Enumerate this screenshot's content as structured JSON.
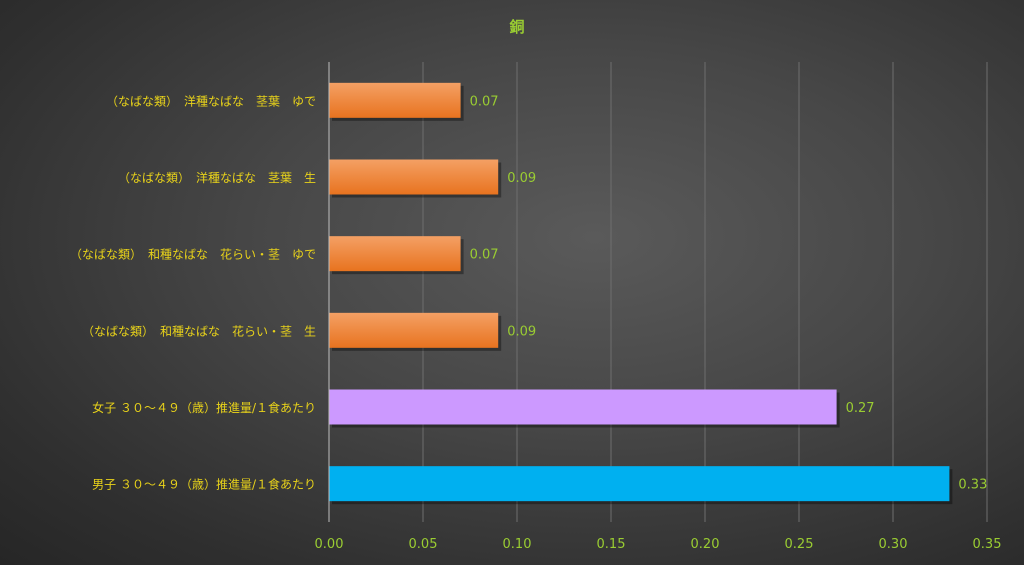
{
  "chart_data": {
    "type": "bar",
    "orientation": "horizontal",
    "title": "銅",
    "xlabel": "",
    "ylabel": "",
    "xlim": [
      0,
      0.35
    ],
    "xticks": [
      "0.00",
      "0.05",
      "0.10",
      "0.15",
      "0.20",
      "0.25",
      "0.30",
      "0.35"
    ],
    "grid": true,
    "legend": "none",
    "categories": [
      "（なばな類）　洋種なばな　茎葉　ゆで",
      "（なばな類）　洋種なばな　茎葉　生",
      "（なばな類）　和種なばな　花らい・茎　ゆで",
      "（なばな類）　和種なばな　花らい・茎　生",
      "女子 ３０～４９（歳）推進量/１食あたり",
      "男子 ３０～４９（歳）推進量/１食あたり"
    ],
    "values": [
      0.07,
      0.09,
      0.07,
      0.09,
      0.27,
      0.33
    ],
    "value_labels": [
      "0.07",
      "0.09",
      "0.07",
      "0.09",
      "0.27",
      "0.33"
    ],
    "colors": [
      "#ed7d31",
      "#ed7d31",
      "#ed7d31",
      "#ed7d31",
      "#cc99ff",
      "#00b0f0"
    ]
  },
  "colors": {
    "label_text": "#e8d21a",
    "tick_text": "#9acd32",
    "grid": "#6e6e6e",
    "axis": "#bfbfbf"
  }
}
